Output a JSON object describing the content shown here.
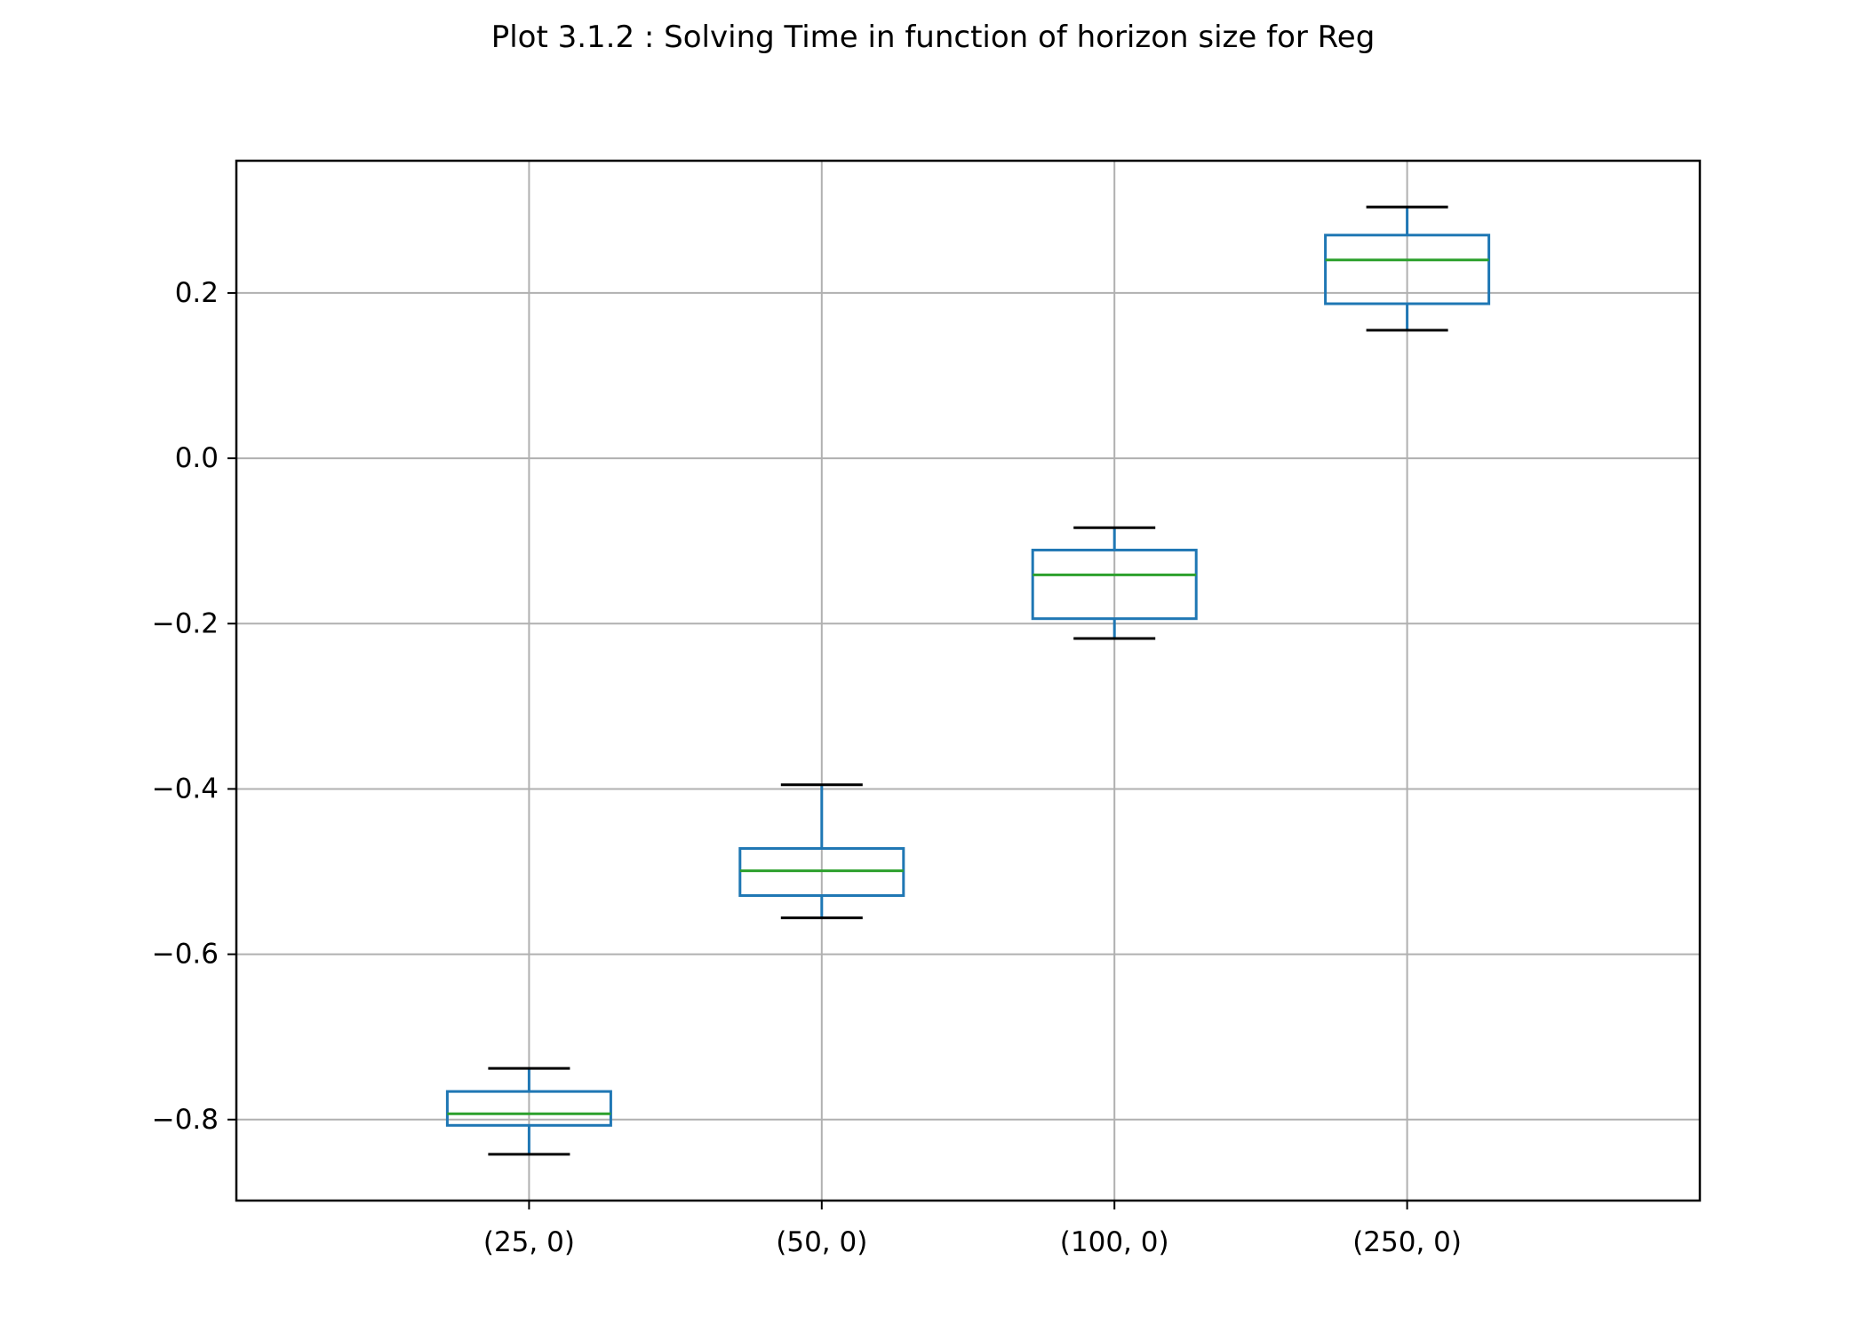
{
  "chart_data": {
    "type": "box",
    "title": "Plot 3.1.2 : Solving Time in function of horizon size for Reg",
    "xlabel": "",
    "ylabel": "",
    "categories": [
      "(25, 0)",
      "(50, 0)",
      "(100, 0)",
      "(250, 0)"
    ],
    "boxes": [
      {
        "whisker_low": -0.842,
        "q1": -0.807,
        "median": -0.793,
        "q3": -0.766,
        "whisker_high": -0.738
      },
      {
        "whisker_low": -0.556,
        "q1": -0.529,
        "median": -0.499,
        "q3": -0.472,
        "whisker_high": -0.395
      },
      {
        "whisker_low": -0.218,
        "q1": -0.194,
        "median": -0.141,
        "q3": -0.111,
        "whisker_high": -0.084
      },
      {
        "whisker_low": 0.155,
        "q1": 0.187,
        "median": 0.24,
        "q3": 0.27,
        "whisker_high": 0.304
      }
    ],
    "yticks": [
      -0.8,
      -0.6,
      -0.4,
      -0.2,
      0.0,
      0.2
    ],
    "ytick_labels": [
      "−0.8",
      "−0.6",
      "−0.4",
      "−0.2",
      "0.0",
      "0.2"
    ],
    "ylim": [
      -0.898,
      0.36
    ],
    "grid": true,
    "legend": "none",
    "colors": {
      "box": "#1f77b4",
      "median": "#2ca02c",
      "whisker_cap": "#000000",
      "grid": "#b0b0b0",
      "axes": "#000000"
    }
  }
}
